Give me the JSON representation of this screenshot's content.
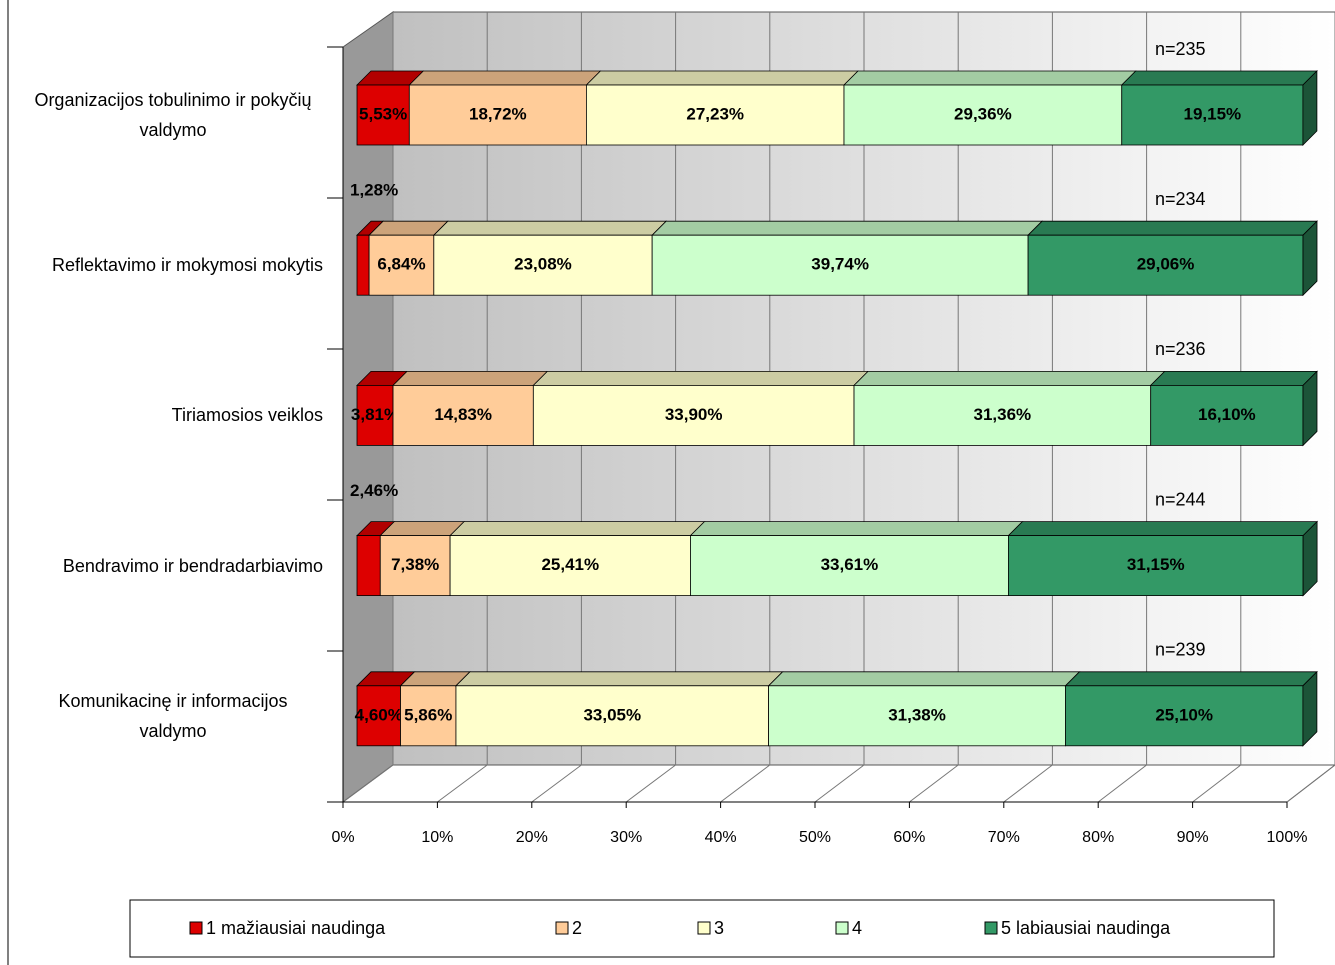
{
  "chart_data": {
    "type": "stacked-bar-3d-horizontal",
    "categories": [
      "Organizacijos tobulinimo ir pokyčių valdymo",
      "Reflektavimo ir mokymosi mokytis",
      "Tiriamosios veiklos",
      "Bendravimo ir bendradarbiavimo",
      "Komunikacinę ir informacijos valdymo"
    ],
    "annotations": [
      "n=235",
      "n=234",
      "n=236",
      "n=244",
      "n=239"
    ],
    "series": [
      {
        "name": "1 mažiausiai naudinga",
        "color": "#dd0000",
        "values": [
          5.53,
          1.28,
          3.81,
          2.46,
          4.6
        ],
        "value_labels": [
          "5,53%",
          "1,28%",
          "3,81%",
          "2,46%",
          "4,60%"
        ]
      },
      {
        "name": "2",
        "color": "#ffcc99",
        "values": [
          18.72,
          6.84,
          14.83,
          7.38,
          5.86
        ],
        "value_labels": [
          "18,72%",
          "6,84%",
          "14,83%",
          "7,38%",
          "5,86%"
        ]
      },
      {
        "name": "3",
        "color": "#ffffcc",
        "values": [
          27.23,
          23.08,
          33.9,
          25.41,
          33.05
        ],
        "value_labels": [
          "27,23%",
          "23,08%",
          "33,90%",
          "25,41%",
          "33,05%"
        ]
      },
      {
        "name": "4",
        "color": "#ccffcc",
        "values": [
          29.36,
          39.74,
          31.36,
          33.61,
          31.38
        ],
        "value_labels": [
          "29,36%",
          "39,74%",
          "31,36%",
          "33,61%",
          "31,38%"
        ]
      },
      {
        "name": "5 labiausiai naudinga",
        "color": "#339966",
        "values": [
          19.15,
          29.06,
          16.1,
          31.15,
          25.1
        ],
        "value_labels": [
          "19,15%",
          "29,06%",
          "16,10%",
          "31,15%",
          "25,10%"
        ]
      }
    ],
    "xlim": [
      0,
      100
    ],
    "xticks": [
      {
        "value": 0,
        "label": "0%"
      },
      {
        "value": 10,
        "label": "10%"
      },
      {
        "value": 20,
        "label": "20%"
      },
      {
        "value": 30,
        "label": "30%"
      },
      {
        "value": 40,
        "label": "40%"
      },
      {
        "value": 50,
        "label": "50%"
      },
      {
        "value": 60,
        "label": "60%"
      },
      {
        "value": 70,
        "label": "70%"
      },
      {
        "value": 80,
        "label": "80%"
      },
      {
        "value": 90,
        "label": "90%"
      },
      {
        "value": 100,
        "label": "100%"
      }
    ],
    "grid": true,
    "legend": "bottom"
  }
}
